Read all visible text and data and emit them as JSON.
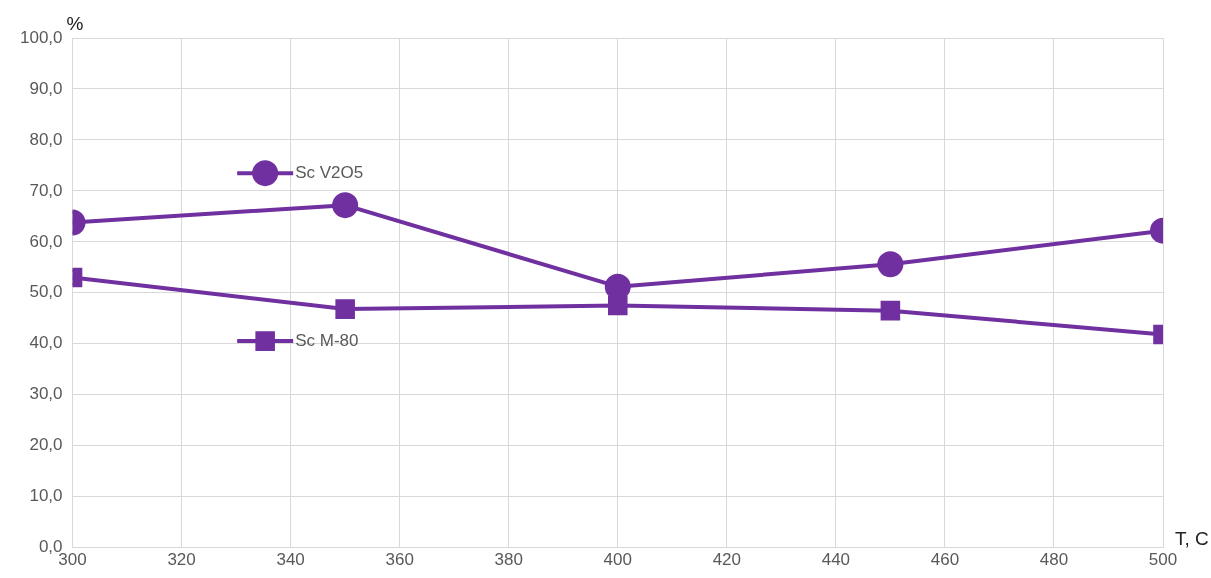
{
  "chart_data": {
    "type": "line",
    "xlabel": "T, C",
    "ylabel": "%",
    "x": [
      300,
      350,
      400,
      450,
      500
    ],
    "series": [
      {
        "name": "Sc V2O5",
        "color": "#7030a0",
        "marker": "circle",
        "values": [
          63.8,
          67.2,
          51.2,
          55.6,
          62.2
        ]
      },
      {
        "name": "Sc M-80",
        "color": "#7030a0",
        "marker": "square",
        "values": [
          53.0,
          46.8,
          47.5,
          46.5,
          41.8
        ]
      }
    ],
    "xlim": [
      300,
      500
    ],
    "xticks": [
      300,
      320,
      340,
      360,
      380,
      400,
      420,
      440,
      460,
      480,
      500
    ],
    "ylim": [
      0,
      100
    ],
    "yticks": [
      {
        "value": 0,
        "label": "0,0"
      },
      {
        "value": 10,
        "label": "10,0"
      },
      {
        "value": 20,
        "label": "20,0"
      },
      {
        "value": 30,
        "label": "30,0"
      },
      {
        "value": 40,
        "label": "40,0"
      },
      {
        "value": 50,
        "label": "50,0"
      },
      {
        "value": 60,
        "label": "60,0"
      },
      {
        "value": 70,
        "label": "70,0"
      },
      {
        "value": 80,
        "label": "80,0"
      },
      {
        "value": 90,
        "label": "90,0"
      },
      {
        "value": 100,
        "label": "100,0"
      }
    ],
    "grid": true,
    "legend": "top left",
    "line_style": "solid"
  }
}
